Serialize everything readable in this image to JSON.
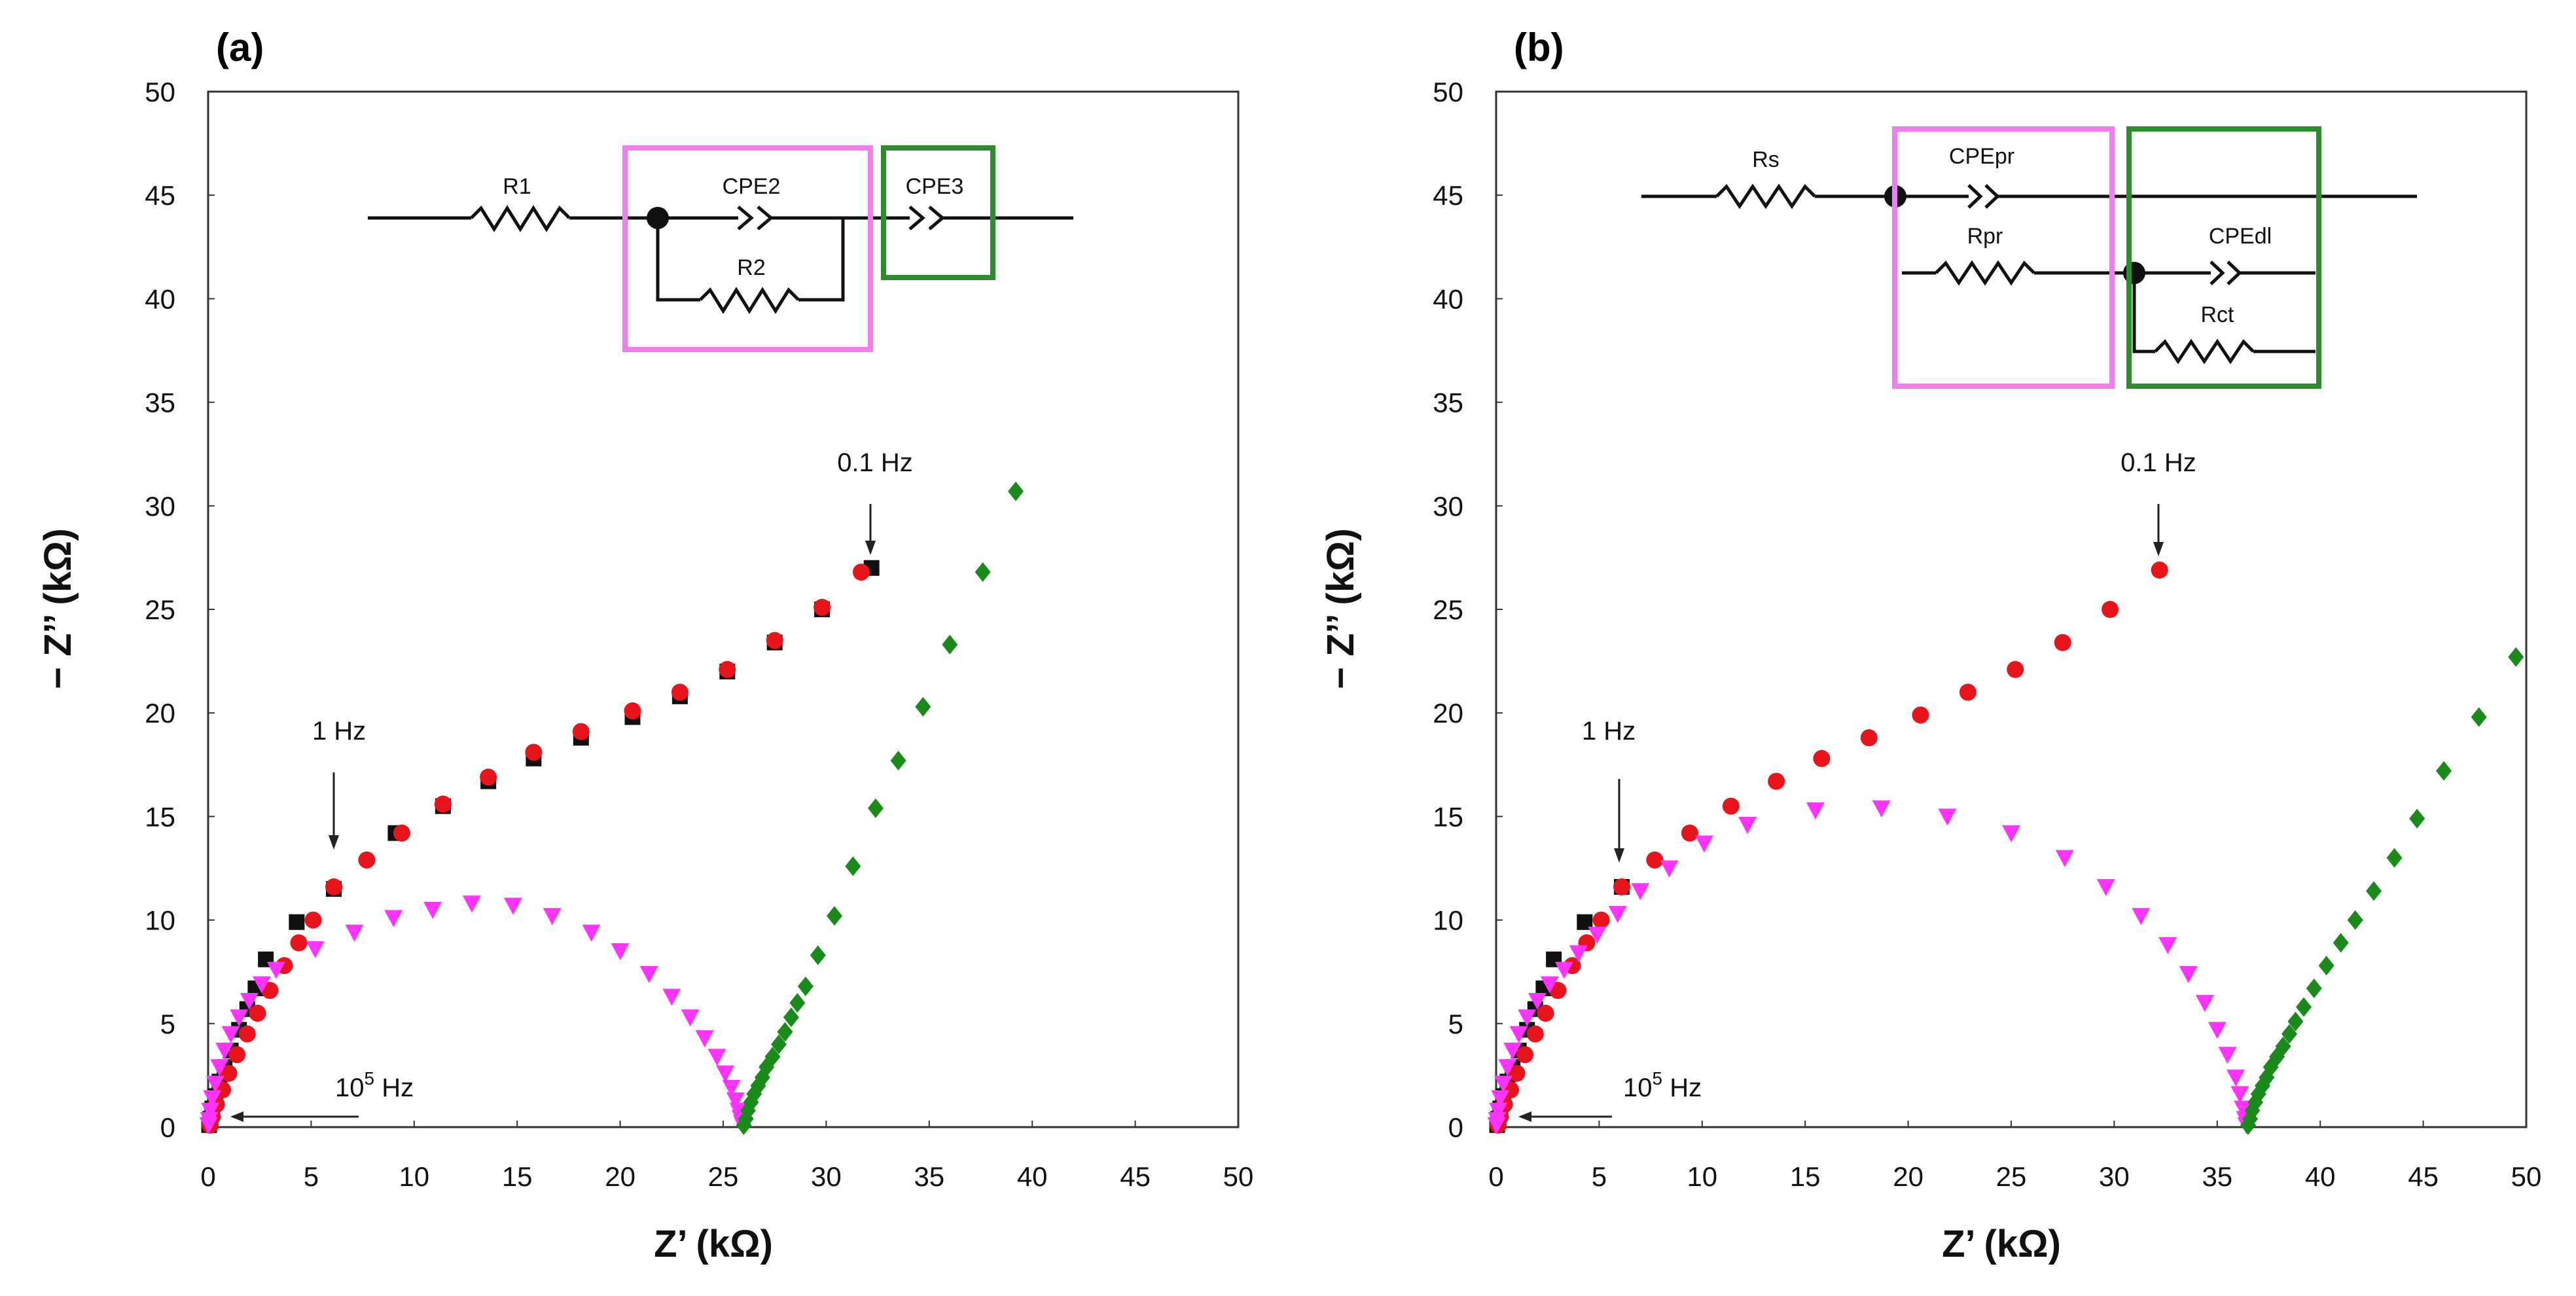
{
  "figure": {
    "panels": [
      {
        "label": "(a)",
        "xlabel": "Z’ (kΩ)",
        "ylabel": "− Z’’ (kΩ)",
        "annotations": {
          "high_freq": "10",
          "high_freq_exp": "5",
          "high_freq_unit": " Hz",
          "mid_freq": "1 Hz",
          "low_freq": "0.1 Hz"
        },
        "circuit": {
          "r1": "R1",
          "cpe2": "CPE2",
          "r2": "R2",
          "cpe3": "CPE3"
        }
      },
      {
        "label": "(b)",
        "xlabel": "Z’ (kΩ)",
        "ylabel": "− Z’’ (kΩ)",
        "annotations": {
          "high_freq": "10",
          "high_freq_exp": "5",
          "high_freq_unit": " Hz",
          "mid_freq": "1 Hz",
          "low_freq": "0.1 Hz"
        },
        "circuit": {
          "rs": "Rs",
          "cpepr": "CPEpr",
          "rpr": "Rpr",
          "cpedl": "CPEdl",
          "rct": "Rct"
        }
      }
    ],
    "colors": {
      "black_series": "#111111",
      "red_series": "#e8141b",
      "magenta_series": "#ff33ff",
      "green_series": "#1a8a1a",
      "magenta_box": "#f07ef0",
      "green_box": "#2e8b2e"
    }
  },
  "chart_data": [
    {
      "type": "scatter",
      "panel": "(a)",
      "xlim": [
        0,
        50
      ],
      "ylim": [
        0,
        50
      ],
      "xticks": [
        0,
        5,
        10,
        15,
        20,
        25,
        30,
        35,
        40,
        45,
        50
      ],
      "yticks": [
        0,
        5,
        10,
        15,
        20,
        25,
        30,
        35,
        40,
        45,
        50
      ],
      "xlabel": "Z’ (kΩ)",
      "ylabel": "− Z’’ (kΩ)",
      "series": [
        {
          "marker": "square",
          "color": "#111111",
          "x": [
            0.05,
            0.1,
            0.2,
            0.35,
            0.55,
            0.8,
            1.1,
            1.5,
            1.9,
            2.3,
            2.8,
            4.3,
            6.1,
            9.1,
            11.4,
            13.6,
            15.8,
            18.1,
            20.6,
            22.9,
            25.2,
            27.5,
            29.8,
            32.2
          ],
          "y": [
            0.1,
            0.4,
            0.9,
            1.5,
            2.2,
            2.9,
            3.7,
            4.7,
            5.7,
            6.7,
            8.1,
            9.9,
            11.5,
            14.2,
            15.5,
            16.7,
            17.8,
            18.8,
            19.8,
            20.8,
            22.0,
            23.4,
            25.0,
            27.0
          ]
        },
        {
          "marker": "circle",
          "color": "#e8141b",
          "x": [
            0.1,
            0.2,
            0.4,
            0.7,
            1.0,
            1.4,
            1.9,
            2.4,
            3.0,
            3.7,
            4.4,
            5.1,
            6.1,
            7.7,
            9.4,
            11.4,
            13.6,
            15.8,
            18.1,
            20.6,
            22.9,
            25.2,
            27.5,
            29.8,
            31.7
          ],
          "y": [
            0.1,
            0.5,
            1.1,
            1.8,
            2.6,
            3.5,
            4.5,
            5.5,
            6.6,
            7.8,
            8.9,
            10.0,
            11.6,
            12.9,
            14.2,
            15.6,
            16.9,
            18.1,
            19.1,
            20.1,
            21.0,
            22.1,
            23.5,
            25.1,
            26.8
          ]
        },
        {
          "marker": "triangle-down",
          "color": "#ff33ff",
          "x": [
            0.02,
            0.05,
            0.1,
            0.2,
            0.35,
            0.55,
            0.8,
            1.1,
            1.5,
            2.0,
            2.6,
            3.3,
            5.2,
            7.1,
            9.0,
            10.9,
            12.8,
            14.8,
            16.7,
            18.6,
            20.0,
            21.4,
            22.5,
            23.4,
            24.1,
            24.7,
            25.1,
            25.4,
            25.6,
            25.75,
            25.85,
            25.92,
            25.98
          ],
          "y": [
            0.1,
            0.35,
            0.8,
            1.4,
            2.1,
            2.9,
            3.7,
            4.5,
            5.3,
            6.1,
            6.9,
            7.6,
            8.6,
            9.4,
            10.1,
            10.5,
            10.8,
            10.7,
            10.2,
            9.4,
            8.5,
            7.4,
            6.3,
            5.3,
            4.3,
            3.4,
            2.6,
            1.9,
            1.3,
            0.8,
            0.45,
            0.2,
            0.05
          ]
        },
        {
          "marker": "diamond",
          "color": "#1a8a1a",
          "x": [
            26.0,
            26.1,
            26.2,
            26.35,
            26.5,
            26.7,
            26.9,
            27.1,
            27.4,
            27.7,
            28.0,
            28.3,
            28.6,
            29.0,
            29.6,
            30.4,
            31.3,
            32.4,
            33.5,
            34.7,
            36.0,
            37.6,
            39.2
          ],
          "y": [
            0.1,
            0.4,
            0.8,
            1.2,
            1.6,
            2.0,
            2.4,
            2.9,
            3.4,
            4.0,
            4.6,
            5.3,
            6.0,
            6.8,
            8.3,
            10.2,
            12.6,
            15.4,
            17.7,
            20.3,
            23.3,
            26.8,
            30.7
          ]
        }
      ]
    },
    {
      "type": "scatter",
      "panel": "(b)",
      "xlim": [
        0,
        50
      ],
      "ylim": [
        0,
        50
      ],
      "xticks": [
        0,
        5,
        10,
        15,
        20,
        25,
        30,
        35,
        40,
        45,
        50
      ],
      "yticks": [
        0,
        5,
        10,
        15,
        20,
        25,
        30,
        35,
        40,
        45,
        50
      ],
      "xlabel": "Z’ (kΩ)",
      "ylabel": "− Z’’ (kΩ)",
      "series": [
        {
          "marker": "square",
          "color": "#111111",
          "x": [
            0.05,
            0.1,
            0.2,
            0.35,
            0.55,
            0.8,
            1.1,
            1.5,
            1.9,
            2.3,
            2.8,
            4.3,
            6.1
          ],
          "y": [
            0.1,
            0.4,
            0.9,
            1.5,
            2.2,
            2.9,
            3.7,
            4.7,
            5.7,
            6.7,
            8.1,
            9.9,
            11.6
          ]
        },
        {
          "marker": "circle",
          "color": "#e8141b",
          "x": [
            0.1,
            0.2,
            0.4,
            0.7,
            1.0,
            1.4,
            1.9,
            2.4,
            3.0,
            3.7,
            4.4,
            5.1,
            6.1,
            7.7,
            9.4,
            11.4,
            13.6,
            15.8,
            18.1,
            20.6,
            22.9,
            25.2,
            27.5,
            29.8,
            32.2
          ],
          "y": [
            0.1,
            0.5,
            1.1,
            1.8,
            2.6,
            3.5,
            4.5,
            5.5,
            6.6,
            7.8,
            8.9,
            10.0,
            11.6,
            12.9,
            14.2,
            15.5,
            16.7,
            17.8,
            18.8,
            19.9,
            21.0,
            22.1,
            23.4,
            25.0,
            26.9
          ]
        },
        {
          "marker": "triangle-down",
          "color": "#ff33ff",
          "x": [
            0.02,
            0.05,
            0.1,
            0.2,
            0.35,
            0.55,
            0.8,
            1.1,
            1.5,
            2.0,
            2.6,
            3.3,
            4.0,
            4.9,
            5.9,
            7.0,
            8.4,
            10.1,
            12.2,
            15.5,
            18.7,
            21.9,
            25.0,
            27.6,
            29.6,
            31.3,
            32.6,
            33.6,
            34.4,
            35.0,
            35.5,
            35.9,
            36.1,
            36.25,
            36.35,
            36.42
          ],
          "y": [
            0.1,
            0.35,
            0.8,
            1.4,
            2.1,
            2.9,
            3.7,
            4.5,
            5.3,
            6.1,
            6.9,
            7.6,
            8.4,
            9.3,
            10.3,
            11.4,
            12.5,
            13.7,
            14.6,
            15.3,
            15.4,
            15.0,
            14.2,
            13.0,
            11.6,
            10.2,
            8.8,
            7.4,
            6.0,
            4.7,
            3.5,
            2.4,
            1.6,
            0.9,
            0.4,
            0.1
          ]
        },
        {
          "marker": "diamond",
          "color": "#1a8a1a",
          "x": [
            36.5,
            36.6,
            36.7,
            36.85,
            37.0,
            37.2,
            37.4,
            37.6,
            37.9,
            38.2,
            38.5,
            38.8,
            39.2,
            39.7,
            40.3,
            41.0,
            41.7,
            42.6,
            43.6,
            44.7,
            46.0,
            47.7,
            49.5
          ],
          "y": [
            0.1,
            0.4,
            0.8,
            1.2,
            1.6,
            2.0,
            2.4,
            2.9,
            3.4,
            3.9,
            4.5,
            5.1,
            5.8,
            6.7,
            7.8,
            8.9,
            10.0,
            11.4,
            13.0,
            14.9,
            17.2,
            19.8,
            22.7
          ]
        }
      ]
    }
  ]
}
